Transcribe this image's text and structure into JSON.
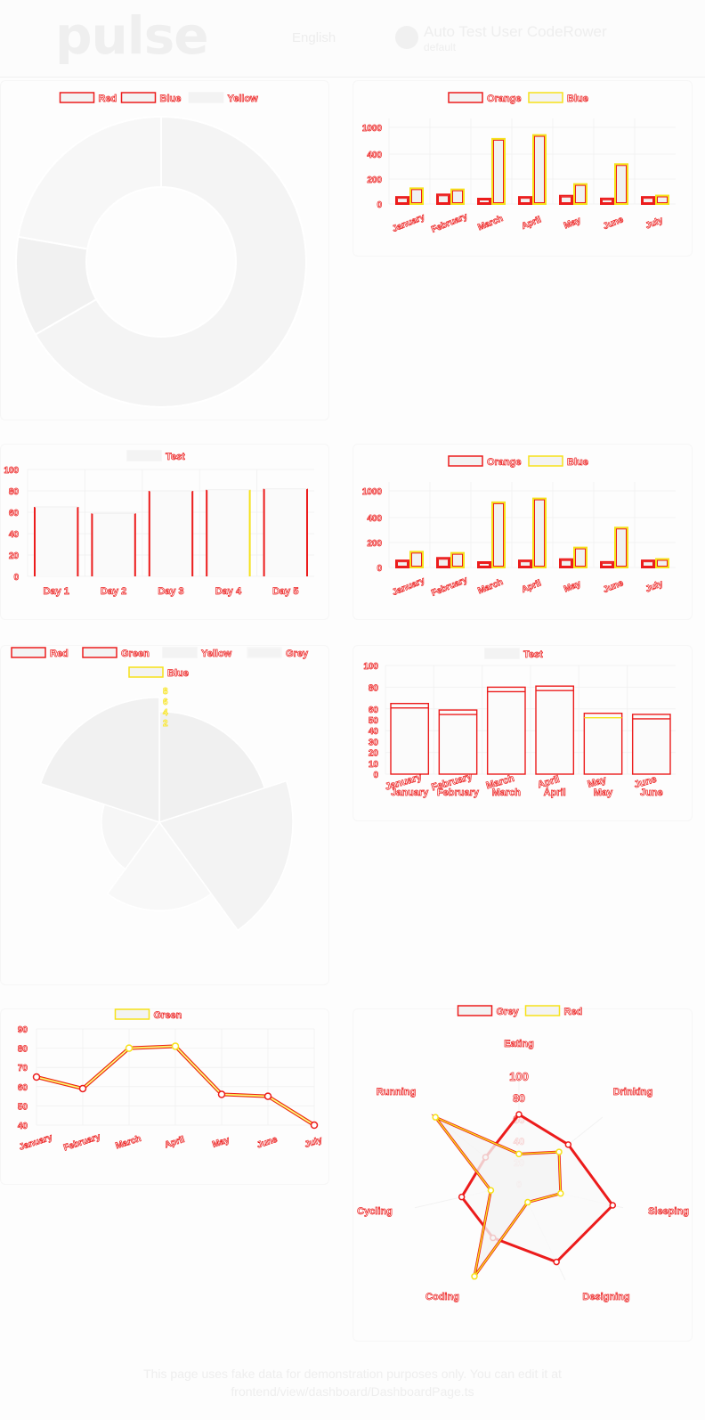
{
  "header": {
    "logo": "pulse",
    "language": "English",
    "user_name": "Auto Test User CodeRower",
    "user_role": "default"
  },
  "footer": {
    "line1": "This page uses fake data for demonstration purposes only. You can edit it at",
    "line2": "frontend/view/dashboard/DashboardPage.ts"
  },
  "colors": {
    "outline_red": "#ec1c1c",
    "outline_yellow": "#f6e21a",
    "fill_light": "#f3f3f3",
    "grid": "#f2f2f2"
  },
  "chart_data": [
    {
      "type": "pie",
      "legend": [
        "Red",
        "Blue",
        "Yellow"
      ],
      "values": [
        300,
        50,
        100
      ]
    },
    {
      "type": "bar",
      "legend": [
        "Orange",
        "Blue"
      ],
      "categories": [
        "January",
        "February",
        "March",
        "April",
        "May",
        "June",
        "July"
      ],
      "series": [
        {
          "name": "Orange",
          "values": [
            55,
            75,
            42,
            55,
            65,
            43,
            55
          ]
        },
        {
          "name": "Blue",
          "values": [
            205,
            190,
            850,
            900,
            260,
            520,
            110
          ]
        }
      ],
      "yticks": [
        "0",
        "200",
        "400",
        "1000"
      ],
      "ylim": [
        0,
        1000
      ]
    },
    {
      "type": "bar",
      "legend": [
        "Test"
      ],
      "categories": [
        "Day 1",
        "Day 2",
        "Day 3",
        "Day 4",
        "Day 5"
      ],
      "series": [
        {
          "name": "Test",
          "values": [
            65,
            59,
            80,
            81,
            82
          ]
        }
      ],
      "yticks": [
        "0",
        "20",
        "40",
        "60",
        "80",
        "100"
      ],
      "ylim": [
        0,
        100
      ]
    },
    {
      "type": "bar",
      "legend": [
        "Orange",
        "Blue"
      ],
      "categories": [
        "January",
        "February",
        "March",
        "April",
        "May",
        "June",
        "July"
      ],
      "series": [
        {
          "name": "Orange",
          "values": [
            55,
            75,
            42,
            55,
            65,
            43,
            55
          ]
        },
        {
          "name": "Blue",
          "values": [
            205,
            190,
            850,
            900,
            260,
            520,
            110
          ]
        }
      ],
      "yticks": [
        "0",
        "200",
        "400",
        "1000"
      ],
      "ylim": [
        0,
        1000
      ]
    },
    {
      "type": "polarArea",
      "legend": [
        "Red",
        "Green",
        "Yellow",
        "Grey",
        "Blue"
      ],
      "values": [
        11,
        16,
        7,
        3,
        14
      ],
      "rticks": [
        "2",
        "4",
        "6",
        "8"
      ]
    },
    {
      "type": "bar",
      "legend": [
        "Test"
      ],
      "categories": [
        "January",
        "February",
        "March",
        "April",
        "May",
        "June"
      ],
      "series": [
        {
          "name": "Test",
          "values": [
            65,
            59,
            80,
            81,
            56,
            55
          ]
        }
      ],
      "yticks": [
        "0",
        "10",
        "20",
        "30",
        "40",
        "50",
        "60",
        "80",
        "100"
      ],
      "ylim": [
        0,
        100
      ]
    },
    {
      "type": "line",
      "legend": [
        "Green"
      ],
      "categories": [
        "January",
        "February",
        "March",
        "April",
        "May",
        "June",
        "July"
      ],
      "series": [
        {
          "name": "Green",
          "values": [
            65,
            59,
            80,
            81,
            56,
            55,
            40
          ]
        }
      ],
      "yticks": [
        "40",
        "50",
        "60",
        "70",
        "80",
        "90"
      ],
      "ylim": [
        40,
        90
      ]
    },
    {
      "type": "radar",
      "legend": [
        "Grey",
        "Red"
      ],
      "categories": [
        "Eating",
        "Drinking",
        "Sleeping",
        "Designing",
        "Coding",
        "Cycling",
        "Running"
      ],
      "series": [
        {
          "name": "Grey",
          "values": [
            65,
            59,
            90,
            81,
            56,
            55,
            40
          ]
        },
        {
          "name": "Red",
          "values": [
            28,
            48,
            40,
            19,
            96,
            27,
            100
          ]
        }
      ],
      "rticks": [
        "0",
        "20",
        "40",
        "60",
        "80",
        "100"
      ],
      "rlim": [
        0,
        100
      ]
    }
  ]
}
